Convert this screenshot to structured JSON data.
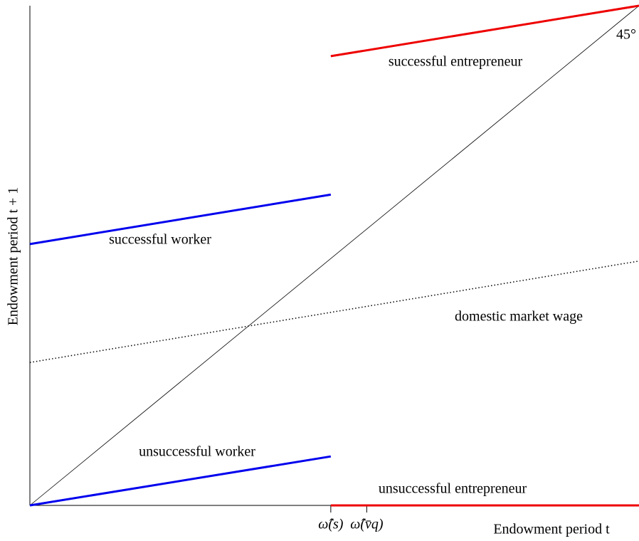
{
  "chart_data": {
    "type": "line",
    "xlabel": "Endowment period t",
    "ylabel": "Endowment period t + 1",
    "xlim": [
      0,
      1
    ],
    "ylim": [
      0,
      1
    ],
    "xticks": [
      {
        "value": 0.494,
        "label": "ω̂(s)"
      },
      {
        "value": 0.553,
        "label": "ω̂(v̄q)"
      }
    ],
    "series": [
      {
        "name": "45°",
        "color": "#000000",
        "style": "solid",
        "width": 0.8,
        "x": [
          0,
          1
        ],
        "values": [
          0,
          1
        ]
      },
      {
        "name": "successful worker",
        "color": "#0000ee",
        "style": "solid",
        "width": 3,
        "x": [
          0,
          0.494
        ],
        "values": [
          0.523,
          0.622
        ]
      },
      {
        "name": "unsuccessful worker",
        "color": "#0000ee",
        "style": "solid",
        "width": 3,
        "x": [
          0,
          0.494
        ],
        "values": [
          0,
          0.098
        ]
      },
      {
        "name": "successful entrepreneur",
        "color": "#ee0000",
        "style": "solid",
        "width": 3,
        "x": [
          0.494,
          1
        ],
        "values": [
          0.899,
          1
        ]
      },
      {
        "name": "unsuccessful entrepreneur",
        "color": "#ee0000",
        "style": "solid",
        "width": 3,
        "x": [
          0.494,
          1
        ],
        "values": [
          0,
          0
        ]
      },
      {
        "name": "domestic market wage",
        "color": "#000000",
        "style": "dotted",
        "width": 1.5,
        "x": [
          0,
          1
        ],
        "values": [
          0.286,
          0.489
        ]
      }
    ]
  }
}
